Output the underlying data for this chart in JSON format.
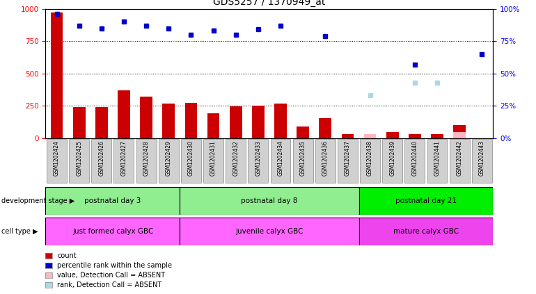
{
  "title": "GDS5257 / 1370949_at",
  "samples": [
    "GSM1202424",
    "GSM1202425",
    "GSM1202426",
    "GSM1202427",
    "GSM1202428",
    "GSM1202429",
    "GSM1202430",
    "GSM1202431",
    "GSM1202432",
    "GSM1202433",
    "GSM1202434",
    "GSM1202435",
    "GSM1202436",
    "GSM1202437",
    "GSM1202438",
    "GSM1202439",
    "GSM1202440",
    "GSM1202441",
    "GSM1202442",
    "GSM1202443"
  ],
  "counts": [
    970,
    240,
    240,
    370,
    320,
    265,
    275,
    190,
    245,
    250,
    270,
    90,
    155,
    30,
    30,
    50,
    30,
    30,
    100,
    null
  ],
  "percentile_rank": [
    96,
    87,
    85,
    90,
    87,
    85,
    80,
    83,
    80,
    84,
    87,
    null,
    79,
    null,
    null,
    null,
    57,
    null,
    null,
    65
  ],
  "absent_value": [
    null,
    null,
    null,
    null,
    null,
    null,
    null,
    null,
    null,
    null,
    null,
    null,
    null,
    null,
    30,
    null,
    null,
    null,
    45,
    null
  ],
  "absent_rank": [
    null,
    null,
    null,
    null,
    null,
    null,
    null,
    null,
    null,
    null,
    null,
    null,
    null,
    null,
    33,
    null,
    43,
    43,
    null,
    null
  ],
  "group_defs": [
    {
      "start": 0,
      "end": 5,
      "label": "postnatal day 3",
      "color": "#90EE90"
    },
    {
      "start": 6,
      "end": 13,
      "label": "postnatal day 8",
      "color": "#90EE90"
    },
    {
      "start": 14,
      "end": 19,
      "label": "postnatal day 21",
      "color": "#00EE00"
    }
  ],
  "cell_defs": [
    {
      "start": 0,
      "end": 5,
      "label": "just formed calyx GBC",
      "color": "#FF66FF"
    },
    {
      "start": 6,
      "end": 13,
      "label": "juvenile calyx GBC",
      "color": "#FF66FF"
    },
    {
      "start": 14,
      "end": 19,
      "label": "mature calyx GBC",
      "color": "#EE44EE"
    }
  ],
  "bar_color": "#CC0000",
  "dot_color": "#0000CC",
  "absent_val_color": "#FFB6C1",
  "absent_rank_color": "#ADD8E6",
  "ylim_left": [
    0,
    1000
  ],
  "ylim_right": [
    0,
    100
  ],
  "yticks_left": [
    0,
    250,
    500,
    750,
    1000
  ],
  "yticks_right": [
    0,
    25,
    50,
    75,
    100
  ],
  "legend_items": [
    {
      "color": "#CC0000",
      "text": "count"
    },
    {
      "color": "#0000CC",
      "text": "percentile rank within the sample"
    },
    {
      "color": "#FFB6C1",
      "text": "value, Detection Call = ABSENT"
    },
    {
      "color": "#ADD8E6",
      "text": "rank, Detection Call = ABSENT"
    }
  ]
}
